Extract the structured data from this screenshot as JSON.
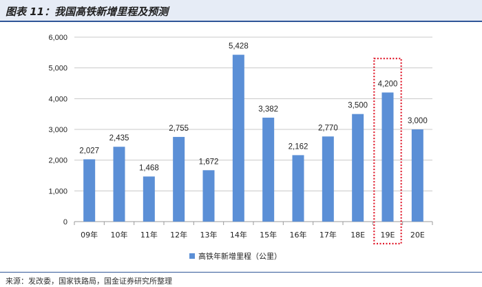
{
  "header": {
    "title": "图表 11：我国高铁新增里程及预测"
  },
  "source": "来源：发改委，国家铁路局，国金证券研究所整理",
  "chart_data": {
    "type": "bar",
    "categories": [
      "09年",
      "10年",
      "11年",
      "12年",
      "13年",
      "14年",
      "15年",
      "16年",
      "17年",
      "18E",
      "19E",
      "20E"
    ],
    "series": [
      {
        "name": "高铁年新增里程（公里）",
        "values": [
          2027,
          2435,
          1468,
          2755,
          1672,
          5428,
          3382,
          2162,
          2770,
          3500,
          4200,
          3000
        ]
      }
    ],
    "data_labels": [
      "2,027",
      "2,435",
      "1,468",
      "2,755",
      "1,672",
      "5,428",
      "3,382",
      "2,162",
      "2,770",
      "3,500",
      "4,200",
      "3,000"
    ],
    "yticks": [
      "0",
      "1,000",
      "2,000",
      "3,000",
      "4,000",
      "5,000",
      "6,000"
    ],
    "ylim": [
      0,
      6000
    ],
    "grid": true,
    "legend_position": "bottom",
    "highlight_category": "19E",
    "colors": {
      "bar": "#5b8fd6",
      "highlight_border": "#e0192a",
      "grid": "#c8c8c8",
      "axis": "#999999"
    }
  }
}
